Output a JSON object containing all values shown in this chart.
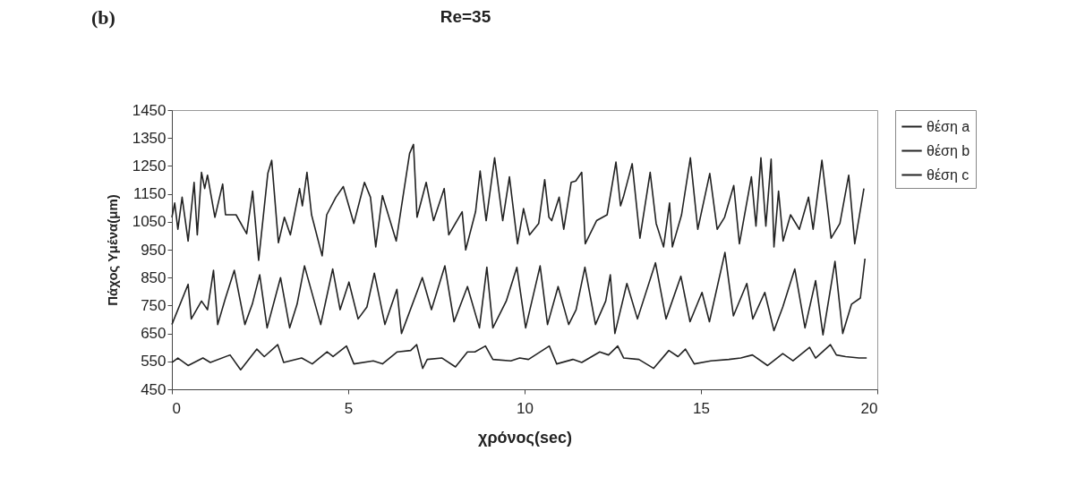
{
  "chart_data": {
    "type": "line",
    "title": "Re=35",
    "annotations": [
      "(b)"
    ],
    "xlabel": "χρόνος(sec)",
    "ylabel": "Πάχος Υμένα(μm)",
    "xlim": [
      0,
      20
    ],
    "xticks": [
      0,
      5,
      10,
      15,
      20
    ],
    "ylim": [
      450,
      1450
    ],
    "yticks": [
      450,
      550,
      650,
      750,
      850,
      950,
      1050,
      1150,
      1250,
      1350,
      1450
    ],
    "legend": "right",
    "series": [
      {
        "name": "θέση a",
        "color": "#222222",
        "x": [
          0,
          0.08,
          0.17,
          0.29,
          0.46,
          0.63,
          0.72,
          0.84,
          0.93,
          1.01,
          1.22,
          1.44,
          1.52,
          1.82,
          2.12,
          2.29,
          2.46,
          2.72,
          2.83,
          3.02,
          3.19,
          3.36,
          3.62,
          3.7,
          3.83,
          3.96,
          4.26,
          4.39,
          4.65,
          4.86,
          5.16,
          5.46,
          5.63,
          5.78,
          5.97,
          6.36,
          6.74,
          6.85,
          6.95,
          7.21,
          7.42,
          7.72,
          7.85,
          8.23,
          8.33,
          8.61,
          8.74,
          8.91,
          9.15,
          9.38,
          9.57,
          9.8,
          9.97,
          10.14,
          10.4,
          10.57,
          10.69,
          10.77,
          10.98,
          11.11,
          11.32,
          11.45,
          11.62,
          11.72,
          12.04,
          12.34,
          12.59,
          12.72,
          12.8,
          13.05,
          13.27,
          13.56,
          13.73,
          13.94,
          14.11,
          14.19,
          14.45,
          14.7,
          14.91,
          15.25,
          15.46,
          15.67,
          15.93,
          16.09,
          16.43,
          16.56,
          16.7,
          16.84,
          16.99,
          17.07,
          17.2,
          17.33,
          17.54,
          17.79,
          18.05,
          18.18,
          18.43,
          18.69,
          18.94,
          19.19,
          19.36,
          19.62
        ],
        "values": [
          1066,
          1117,
          1023,
          1138,
          981,
          1191,
          1003,
          1227,
          1169,
          1217,
          1066,
          1185,
          1075,
          1075,
          1007,
          1160,
          912,
          1223,
          1270,
          975,
          1066,
          1003,
          1169,
          1107,
          1227,
          1075,
          928,
          1075,
          1138,
          1176,
          1044,
          1191,
          1138,
          960,
          1144,
          981,
          1295,
          1327,
          1066,
          1191,
          1054,
          1169,
          1003,
          1086,
          949,
          1086,
          1232,
          1054,
          1279,
          1054,
          1211,
          971,
          1097,
          1003,
          1044,
          1201,
          1066,
          1054,
          1138,
          1023,
          1191,
          1196,
          1227,
          971,
          1054,
          1075,
          1264,
          1107,
          1138,
          1258,
          991,
          1227,
          1044,
          960,
          1117,
          960,
          1075,
          1279,
          1023,
          1223,
          1023,
          1066,
          1180,
          971,
          1211,
          1034,
          1279,
          1034,
          1274,
          960,
          1160,
          981,
          1075,
          1023,
          1138,
          1023,
          1270,
          991,
          1044,
          1217,
          971,
          1169
        ]
      },
      {
        "name": "θέση b",
        "color": "#222222",
        "x": [
          0,
          0.46,
          0.55,
          0.84,
          1.01,
          1.18,
          1.3,
          1.52,
          1.77,
          2.07,
          2.28,
          2.49,
          2.7,
          3.08,
          3.34,
          3.55,
          3.76,
          4.22,
          4.56,
          4.77,
          5.02,
          5.28,
          5.53,
          5.74,
          6.04,
          6.38,
          6.51,
          7.1,
          7.36,
          7.74,
          8.0,
          8.38,
          8.72,
          8.93,
          9.1,
          9.48,
          9.78,
          10.03,
          10.44,
          10.65,
          10.95,
          11.25,
          11.46,
          11.71,
          12.01,
          12.3,
          12.43,
          12.56,
          12.9,
          13.2,
          13.71,
          14.01,
          14.43,
          14.69,
          15.03,
          15.24,
          15.68,
          15.92,
          16.3,
          16.47,
          16.81,
          17.07,
          17.32,
          17.66,
          17.95,
          18.25,
          18.46,
          18.8,
          19.02,
          19.27,
          19.52,
          19.65
        ],
        "values": [
          682,
          826,
          702,
          766,
          735,
          876,
          682,
          777,
          876,
          682,
          755,
          860,
          670,
          850,
          670,
          755,
          892,
          682,
          881,
          735,
          834,
          702,
          745,
          866,
          682,
          808,
          650,
          850,
          735,
          892,
          692,
          818,
          670,
          887,
          670,
          766,
          887,
          670,
          892,
          682,
          818,
          682,
          735,
          887,
          682,
          766,
          860,
          650,
          829,
          702,
          903,
          702,
          855,
          692,
          797,
          692,
          940,
          713,
          829,
          702,
          797,
          660,
          745,
          881,
          670,
          839,
          645,
          908,
          650,
          755,
          777,
          918
        ]
      },
      {
        "name": "θέση c",
        "color": "#222222",
        "x": [
          0,
          0.17,
          0.46,
          0.88,
          1.09,
          1.65,
          1.95,
          2.41,
          2.62,
          3.0,
          3.17,
          3.68,
          3.98,
          4.4,
          4.57,
          4.95,
          5.16,
          5.71,
          5.97,
          6.39,
          6.77,
          6.94,
          7.11,
          7.24,
          7.66,
          8.04,
          8.38,
          8.59,
          8.89,
          9.1,
          9.61,
          9.86,
          10.11,
          10.7,
          10.91,
          11.37,
          11.62,
          12.13,
          12.38,
          12.64,
          12.81,
          13.24,
          13.66,
          14.09,
          14.35,
          14.56,
          14.81,
          15.28,
          15.79,
          16.13,
          16.46,
          16.89,
          17.32,
          17.61,
          18.08,
          18.25,
          18.67,
          18.84,
          19.1,
          19.48,
          19.7
        ],
        "values": [
          546,
          562,
          535,
          562,
          546,
          573,
          520,
          594,
          567,
          610,
          546,
          562,
          541,
          584,
          567,
          605,
          541,
          552,
          541,
          584,
          589,
          610,
          525,
          557,
          562,
          530,
          584,
          584,
          605,
          557,
          552,
          562,
          557,
          605,
          541,
          557,
          546,
          584,
          573,
          605,
          562,
          557,
          525,
          589,
          567,
          594,
          541,
          552,
          557,
          562,
          573,
          535,
          578,
          552,
          600,
          562,
          610,
          573,
          567,
          562,
          562
        ]
      }
    ]
  }
}
